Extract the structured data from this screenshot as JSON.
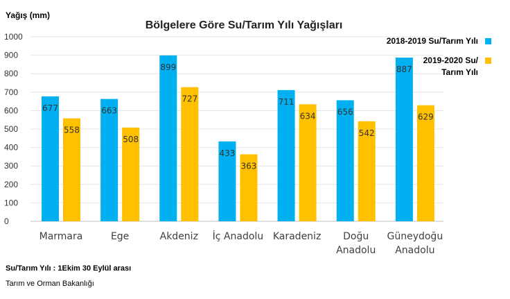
{
  "chart_data": {
    "type": "bar",
    "title": "Bölgelere Göre Su/Tarım Yılı Yağışları",
    "ylabel": "Yağış (mm)",
    "xlabel": "",
    "ylim": [
      0,
      1000
    ],
    "yticks": [
      0,
      100,
      200,
      300,
      400,
      500,
      600,
      700,
      800,
      900,
      1000
    ],
    "grid": true,
    "legend_position": "right",
    "categories": [
      [
        "Marmara"
      ],
      [
        "Ege"
      ],
      [
        "Akdeniz"
      ],
      [
        "İç Anadolu"
      ],
      [
        "Karadeniz"
      ],
      [
        "Doğu",
        "Anadolu"
      ],
      [
        "Güneydoğu",
        "Anadolu"
      ]
    ],
    "series": [
      {
        "name": "2018-2019 Su/Tarım Yılı",
        "legend_lines": [
          "2018-2019 Su/Tarım Yılı"
        ],
        "color": "#00b0f0",
        "values": [
          677,
          663,
          899,
          433,
          711,
          656,
          887
        ]
      },
      {
        "name": "2019-2020 Su/ Tarım Yılı",
        "legend_lines": [
          "2019-2020 Su/",
          "Tarım Yılı"
        ],
        "color": "#ffc000",
        "values": [
          558,
          508,
          727,
          363,
          634,
          542,
          629
        ]
      }
    ]
  },
  "footnote": "Su/Tarım Yılı : 1Ekim 30 Eylül arası",
  "source": "Tarım ve Orman Bakanlığı"
}
